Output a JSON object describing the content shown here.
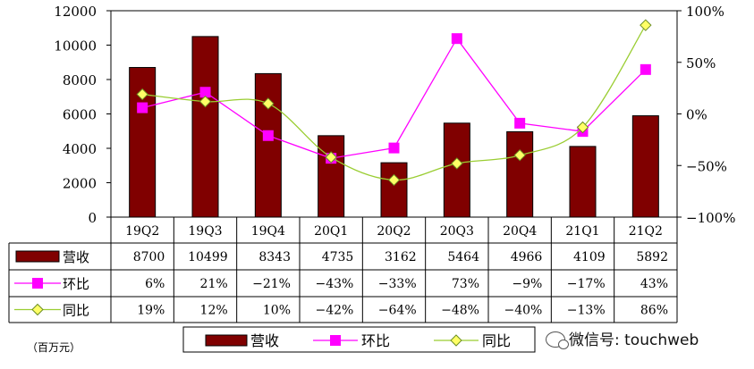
{
  "chart_data": {
    "type": "bar",
    "categories": [
      "19Q2",
      "19Q3",
      "19Q4",
      "20Q1",
      "20Q2",
      "20Q3",
      "20Q4",
      "21Q1",
      "21Q2"
    ],
    "series": [
      {
        "name": "营收",
        "chart": "bar",
        "axis": "left",
        "values": [
          8700,
          10499,
          8343,
          4735,
          3162,
          5464,
          4966,
          4109,
          5892
        ],
        "labels": [
          "8700",
          "10499",
          "8343",
          "4735",
          "3162",
          "5464",
          "4966",
          "4109",
          "5892"
        ],
        "color": "#800000"
      },
      {
        "name": "环比",
        "chart": "line",
        "axis": "right",
        "marker": "square",
        "values": [
          6,
          21,
          -21,
          -43,
          -33,
          73,
          -9,
          -17,
          43
        ],
        "labels": [
          "6%",
          "21%",
          "-21%",
          "-43%",
          "-33%",
          "73%",
          "-9%",
          "-17%",
          "43%"
        ],
        "color": "#ff00ff"
      },
      {
        "name": "同比",
        "chart": "line",
        "axis": "right",
        "marker": "diamond",
        "values": [
          19,
          12,
          10,
          -42,
          -64,
          -48,
          -40,
          -13,
          86
        ],
        "labels": [
          "19%",
          "12%",
          "10%",
          "-42%",
          "-64%",
          "-48%",
          "-40%",
          "-13%",
          "86%"
        ],
        "color": "#9acd32"
      }
    ],
    "y_left": {
      "min": 0,
      "max": 12000,
      "ticks": [
        "0",
        "2000",
        "4000",
        "6000",
        "8000",
        "10000",
        "12000"
      ]
    },
    "y_right": {
      "min": -100,
      "max": 100,
      "ticks": [
        "-100%",
        "-50%",
        "0%",
        "50%",
        "100%"
      ]
    },
    "grid": false,
    "legend": "bottom",
    "data_table": true
  },
  "unit_label": "（百万元）",
  "watermark": "微信号: touchweb"
}
